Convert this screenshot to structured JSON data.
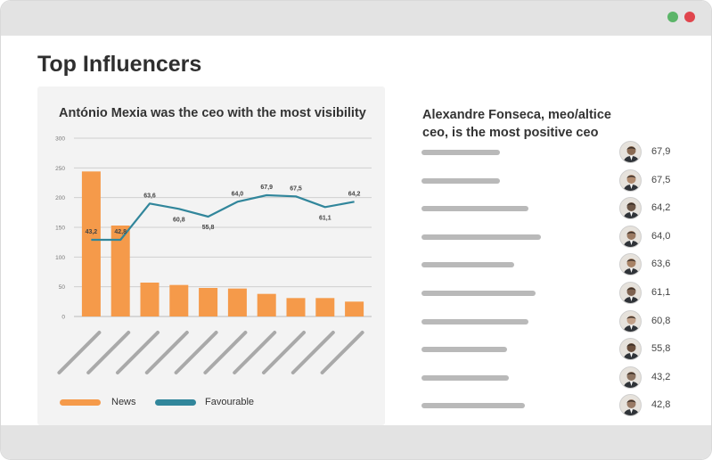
{
  "window": {
    "controls": [
      "minimize",
      "close"
    ]
  },
  "page": {
    "title": "Top Influencers"
  },
  "chart_data": {
    "type": "bar",
    "title": "António Mexia was the ceo with the most visibility",
    "categories": [
      "",
      "",
      "",
      "",
      "",
      "",
      "",
      "",
      "",
      ""
    ],
    "series": [
      {
        "name": "News",
        "type": "bar",
        "values": [
          244,
          153,
          57,
          53,
          48,
          47,
          38,
          31,
          31,
          25
        ]
      },
      {
        "name": "Favourable",
        "type": "line",
        "values": [
          129,
          129,
          190,
          181,
          168,
          193,
          204,
          202,
          184,
          193
        ],
        "labels": [
          "43,2",
          "42,8",
          "63,6",
          "60,8",
          "55,8",
          "64,0",
          "67,9",
          "67,5",
          "61,1",
          "64,2"
        ]
      }
    ],
    "ylim": [
      0,
      300
    ],
    "yticks": [
      0,
      50,
      100,
      150,
      200,
      250,
      300
    ],
    "grid": true,
    "legend": "bottom",
    "colors": {
      "news": "#f59a4a",
      "favourable": "#31869b"
    },
    "xlabel": "",
    "ylabel": ""
  },
  "legend": {
    "news_label": "News",
    "favourable_label": "Favourable"
  },
  "ranking": {
    "title": "Alexandre Fonseca, meo/altice ceo, is the most positive ceo",
    "items": [
      {
        "value": "67,9",
        "bar": 0.44
      },
      {
        "value": "67,5",
        "bar": 0.44
      },
      {
        "value": "64,2",
        "bar": 0.6
      },
      {
        "value": "64,0",
        "bar": 0.67
      },
      {
        "value": "63,6",
        "bar": 0.52
      },
      {
        "value": "61,1",
        "bar": 0.64
      },
      {
        "value": "60,8",
        "bar": 0.6
      },
      {
        "value": "55,8",
        "bar": 0.48
      },
      {
        "value": "43,2",
        "bar": 0.49
      },
      {
        "value": "42,8",
        "bar": 0.58
      }
    ]
  }
}
